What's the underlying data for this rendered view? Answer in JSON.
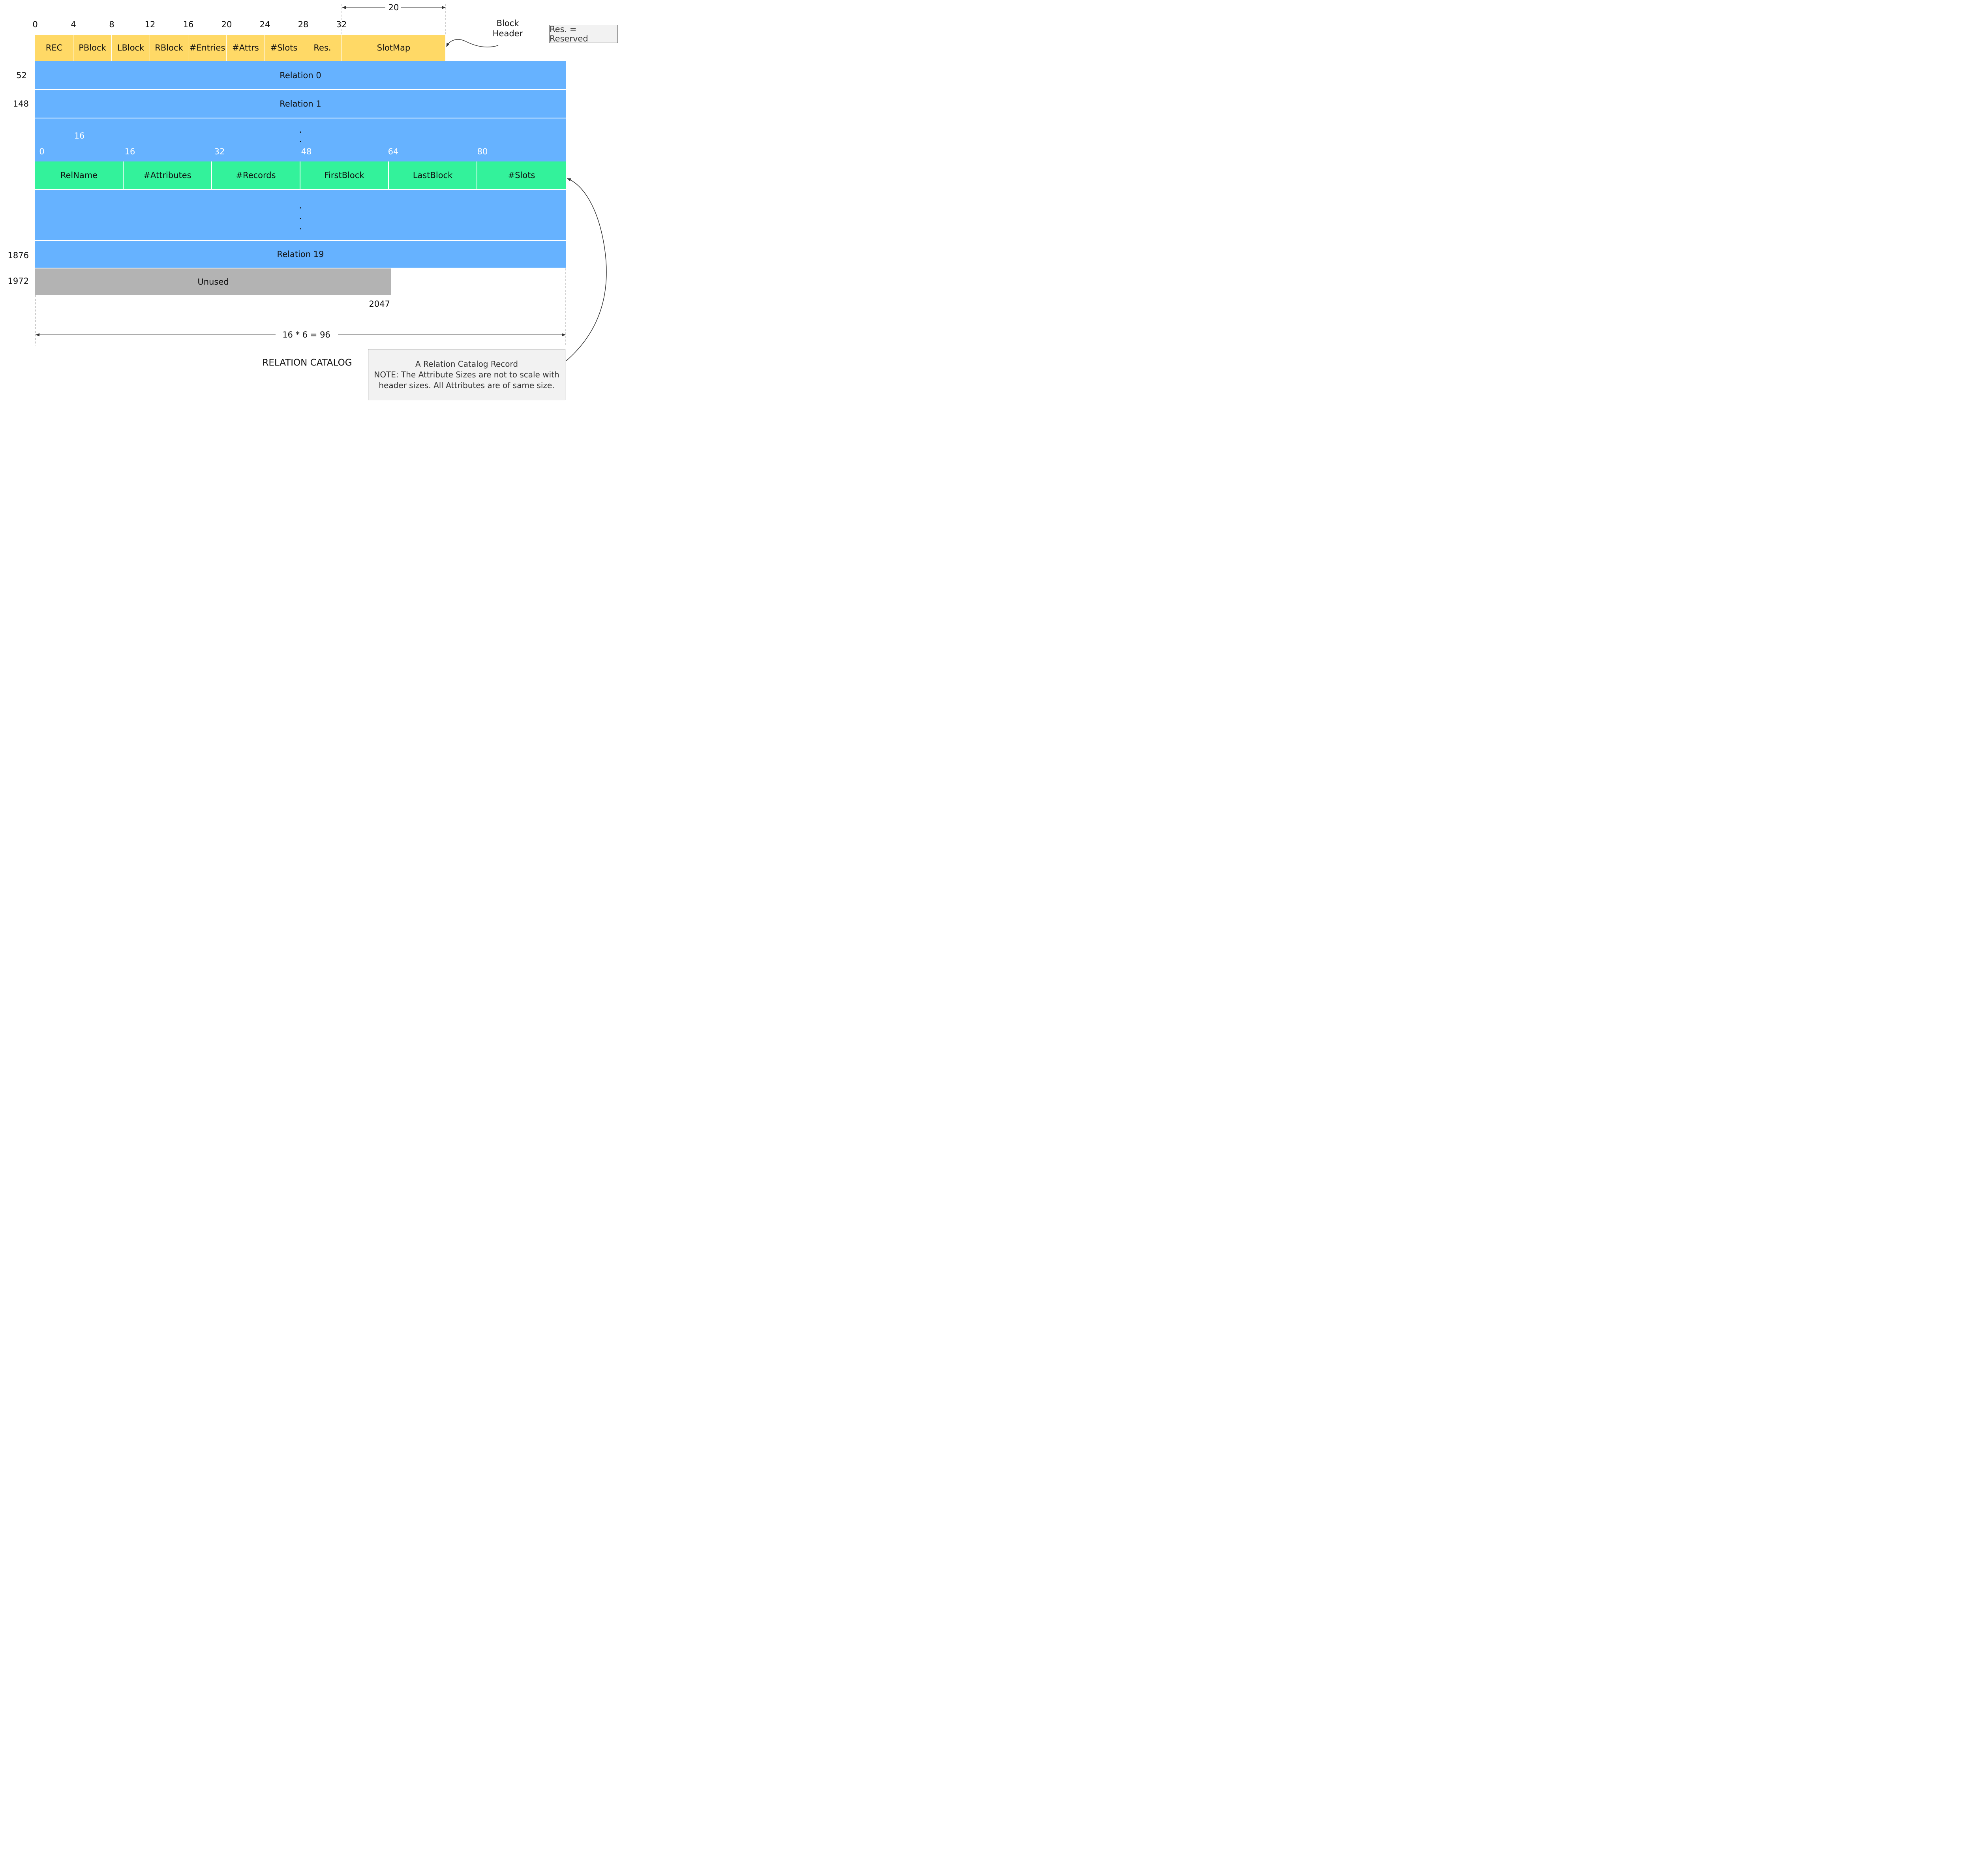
{
  "header": {
    "offsets": [
      "0",
      "4",
      "8",
      "12",
      "16",
      "20",
      "24",
      "28",
      "32"
    ],
    "fields": [
      "REC",
      "PBlock",
      "LBlock",
      "RBlock",
      "#Entries",
      "#Attrs",
      "#Slots",
      "Res.",
      "SlotMap"
    ],
    "slotmap_width_label": "20",
    "block_header_label": "Block\nHeader"
  },
  "legend": {
    "text": "Res. = Reserved"
  },
  "rows": {
    "relation0": {
      "offset": "52",
      "label": "Relation 0"
    },
    "relation1": {
      "offset": "148",
      "label": "Relation 1"
    },
    "relation19": {
      "offset": "1876",
      "label": "Relation 19"
    },
    "unused": {
      "offset": "1972",
      "label": "Unused",
      "end_offset": "2047"
    },
    "ellipsis": "."
  },
  "record": {
    "attr_width_label": "16",
    "offsets": [
      "0",
      "16",
      "32",
      "48",
      "64",
      "80"
    ],
    "fields": [
      "RelName",
      "#Attributes",
      "#Records",
      "FirstBlock",
      "LastBlock",
      "#Slots"
    ]
  },
  "total_width_label": "16 * 6 = 96",
  "title": "RELATION CATALOG",
  "note": {
    "line1": "A Relation Catalog Record",
    "line2": "NOTE: The Attribute Sizes are not to scale with",
    "line3": "header sizes. All Attributes are of same size."
  },
  "colors": {
    "header": "#ffd966",
    "relation": "#66b2ff",
    "record": "#33f29b",
    "unused": "#b3b3b3"
  }
}
